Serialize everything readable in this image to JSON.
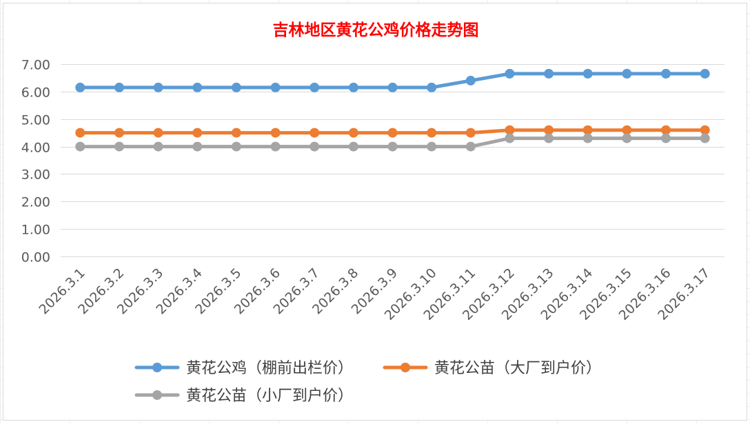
{
  "chart_data": {
    "type": "line",
    "title": "吉林地区黄花公鸡价格走势图",
    "xlabel": "",
    "ylabel": "",
    "ylim": [
      0,
      7
    ],
    "y_ticks": [
      "0.00",
      "1.00",
      "2.00",
      "3.00",
      "4.00",
      "5.00",
      "6.00",
      "7.00"
    ],
    "grid": true,
    "legend_position": "bottom",
    "categories": [
      "2026.3.1",
      "2026.3.2",
      "2026.3.3",
      "2026.3.4",
      "2026.3.5",
      "2026.3.6",
      "2026.3.7",
      "2026.3.8",
      "2026.3.9",
      "2026.3.10",
      "2026.3.11",
      "2026.3.12",
      "2026.3.13",
      "2026.3.14",
      "2026.3.15",
      "2026.3.16",
      "2026.3.17"
    ],
    "series": [
      {
        "name": "黄花公鸡（棚前出栏价）",
        "color": "#5b9bd5",
        "values": [
          6.15,
          6.15,
          6.15,
          6.15,
          6.15,
          6.15,
          6.15,
          6.15,
          6.15,
          6.15,
          6.4,
          6.65,
          6.65,
          6.65,
          6.65,
          6.65,
          6.65
        ]
      },
      {
        "name": "黄花公苗（大厂到户价）",
        "color": "#ed7d31",
        "values": [
          4.5,
          4.5,
          4.5,
          4.5,
          4.5,
          4.5,
          4.5,
          4.5,
          4.5,
          4.5,
          4.5,
          4.6,
          4.6,
          4.6,
          4.6,
          4.6,
          4.6
        ]
      },
      {
        "name": "黄花公苗（小厂到户价）",
        "color": "#a5a5a5",
        "values": [
          4.0,
          4.0,
          4.0,
          4.0,
          4.0,
          4.0,
          4.0,
          4.0,
          4.0,
          4.0,
          4.0,
          4.3,
          4.3,
          4.3,
          4.3,
          4.3,
          4.3
        ]
      }
    ],
    "title_color": "#ff0000"
  }
}
